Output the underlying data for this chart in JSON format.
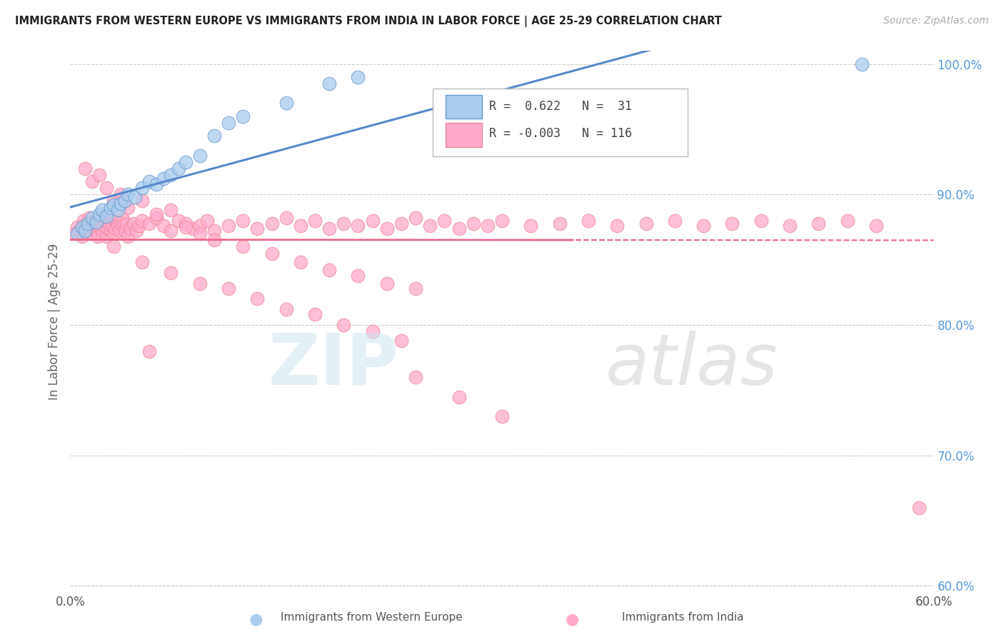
{
  "title": "IMMIGRANTS FROM WESTERN EUROPE VS IMMIGRANTS FROM INDIA IN LABOR FORCE | AGE 25-29 CORRELATION CHART",
  "source": "Source: ZipAtlas.com",
  "ylabel": "In Labor Force | Age 25-29",
  "xlim": [
    0.0,
    0.6
  ],
  "ylim": [
    0.595,
    1.01
  ],
  "xtick_positions": [
    0.0,
    0.1,
    0.2,
    0.3,
    0.4,
    0.5,
    0.6
  ],
  "xticklabels": [
    "0.0%",
    "",
    "",
    "",
    "",
    "",
    "60.0%"
  ],
  "ytick_positions": [
    0.6,
    0.7,
    0.8,
    0.9,
    1.0
  ],
  "yticklabels": [
    "60.0%",
    "70.0%",
    "80.0%",
    "90.0%",
    "100.0%"
  ],
  "blue_R": 0.622,
  "blue_N": 31,
  "pink_R": -0.003,
  "pink_N": 116,
  "blue_marker_color": "#aaccee",
  "blue_edge_color": "#6699cc",
  "pink_marker_color": "#ffaacc",
  "pink_edge_color": "#ee8899",
  "blue_line_color": "#5588cc",
  "pink_line_color": "#ee6688",
  "ytick_color": "#5599dd",
  "legend_label_blue": "Immigrants from Western Europe",
  "legend_label_pink": "Immigrants from India",
  "blue_scatter_x": [
    0.005,
    0.008,
    0.01,
    0.012,
    0.015,
    0.018,
    0.02,
    0.022,
    0.025,
    0.028,
    0.03,
    0.033,
    0.035,
    0.038,
    0.04,
    0.045,
    0.05,
    0.055,
    0.06,
    0.065,
    0.07,
    0.075,
    0.08,
    0.09,
    0.1,
    0.11,
    0.12,
    0.15,
    0.18,
    0.2,
    0.55
  ],
  "blue_scatter_y": [
    0.87,
    0.875,
    0.872,
    0.878,
    0.882,
    0.879,
    0.885,
    0.888,
    0.883,
    0.89,
    0.892,
    0.888,
    0.893,
    0.895,
    0.9,
    0.898,
    0.905,
    0.91,
    0.908,
    0.912,
    0.915,
    0.92,
    0.925,
    0.93,
    0.945,
    0.955,
    0.96,
    0.97,
    0.985,
    0.99,
    1.0
  ],
  "pink_scatter_x": [
    0.003,
    0.005,
    0.006,
    0.008,
    0.009,
    0.01,
    0.011,
    0.012,
    0.013,
    0.014,
    0.015,
    0.016,
    0.017,
    0.018,
    0.019,
    0.02,
    0.021,
    0.022,
    0.023,
    0.024,
    0.025,
    0.026,
    0.027,
    0.028,
    0.029,
    0.03,
    0.031,
    0.032,
    0.033,
    0.034,
    0.035,
    0.036,
    0.037,
    0.038,
    0.039,
    0.04,
    0.042,
    0.044,
    0.046,
    0.048,
    0.05,
    0.055,
    0.06,
    0.065,
    0.07,
    0.075,
    0.08,
    0.085,
    0.09,
    0.095,
    0.1,
    0.11,
    0.12,
    0.13,
    0.14,
    0.15,
    0.16,
    0.17,
    0.18,
    0.19,
    0.2,
    0.21,
    0.22,
    0.23,
    0.24,
    0.25,
    0.26,
    0.27,
    0.28,
    0.29,
    0.3,
    0.32,
    0.34,
    0.36,
    0.38,
    0.4,
    0.42,
    0.44,
    0.46,
    0.48,
    0.5,
    0.52,
    0.54,
    0.56,
    0.01,
    0.015,
    0.02,
    0.025,
    0.03,
    0.035,
    0.04,
    0.05,
    0.06,
    0.07,
    0.08,
    0.09,
    0.1,
    0.12,
    0.14,
    0.16,
    0.18,
    0.2,
    0.22,
    0.24,
    0.03,
    0.05,
    0.07,
    0.09,
    0.11,
    0.13,
    0.15,
    0.17,
    0.19,
    0.21,
    0.23,
    0.055,
    0.59,
    0.24,
    0.27,
    0.3
  ],
  "pink_scatter_y": [
    0.87,
    0.875,
    0.872,
    0.868,
    0.88,
    0.876,
    0.872,
    0.878,
    0.882,
    0.87,
    0.875,
    0.88,
    0.873,
    0.877,
    0.868,
    0.882,
    0.878,
    0.872,
    0.876,
    0.88,
    0.868,
    0.874,
    0.878,
    0.872,
    0.876,
    0.87,
    0.874,
    0.88,
    0.876,
    0.872,
    0.878,
    0.882,
    0.876,
    0.872,
    0.878,
    0.868,
    0.874,
    0.878,
    0.872,
    0.876,
    0.88,
    0.878,
    0.882,
    0.876,
    0.872,
    0.88,
    0.878,
    0.874,
    0.876,
    0.88,
    0.872,
    0.876,
    0.88,
    0.874,
    0.878,
    0.882,
    0.876,
    0.88,
    0.874,
    0.878,
    0.876,
    0.88,
    0.874,
    0.878,
    0.882,
    0.876,
    0.88,
    0.874,
    0.878,
    0.876,
    0.88,
    0.876,
    0.878,
    0.88,
    0.876,
    0.878,
    0.88,
    0.876,
    0.878,
    0.88,
    0.876,
    0.878,
    0.88,
    0.876,
    0.92,
    0.91,
    0.915,
    0.905,
    0.895,
    0.9,
    0.89,
    0.895,
    0.885,
    0.888,
    0.875,
    0.87,
    0.865,
    0.86,
    0.855,
    0.848,
    0.842,
    0.838,
    0.832,
    0.828,
    0.86,
    0.848,
    0.84,
    0.832,
    0.828,
    0.82,
    0.812,
    0.808,
    0.8,
    0.795,
    0.788,
    0.78,
    0.66,
    0.76,
    0.745,
    0.73
  ]
}
